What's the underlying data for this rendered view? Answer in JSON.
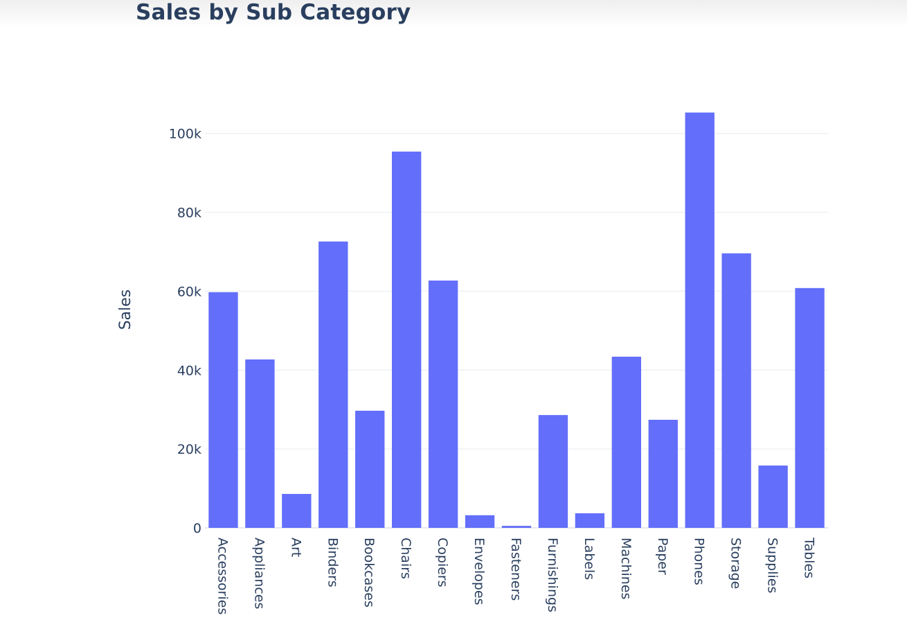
{
  "chart_data": {
    "type": "bar",
    "title": "Sales by Sub Category",
    "xlabel": "",
    "ylabel": "Sales",
    "categories": [
      "Accessories",
      "Appliances",
      "Art",
      "Binders",
      "Bookcases",
      "Chairs",
      "Copiers",
      "Envelopes",
      "Fasteners",
      "Furnishings",
      "Labels",
      "Machines",
      "Paper",
      "Phones",
      "Storage",
      "Supplies",
      "Tables"
    ],
    "values": [
      59750,
      42700,
      8600,
      72600,
      29700,
      95400,
      62700,
      3200,
      500,
      28600,
      3700,
      43400,
      27400,
      105300,
      69600,
      15800,
      60800
    ],
    "ylim": [
      0,
      111000
    ],
    "yticks": [
      0,
      20000,
      40000,
      60000,
      80000,
      100000
    ],
    "ytick_labels": [
      "0",
      "20k",
      "40k",
      "60k",
      "80k",
      "100k"
    ],
    "grid": true,
    "bar_color": "#636efa"
  }
}
